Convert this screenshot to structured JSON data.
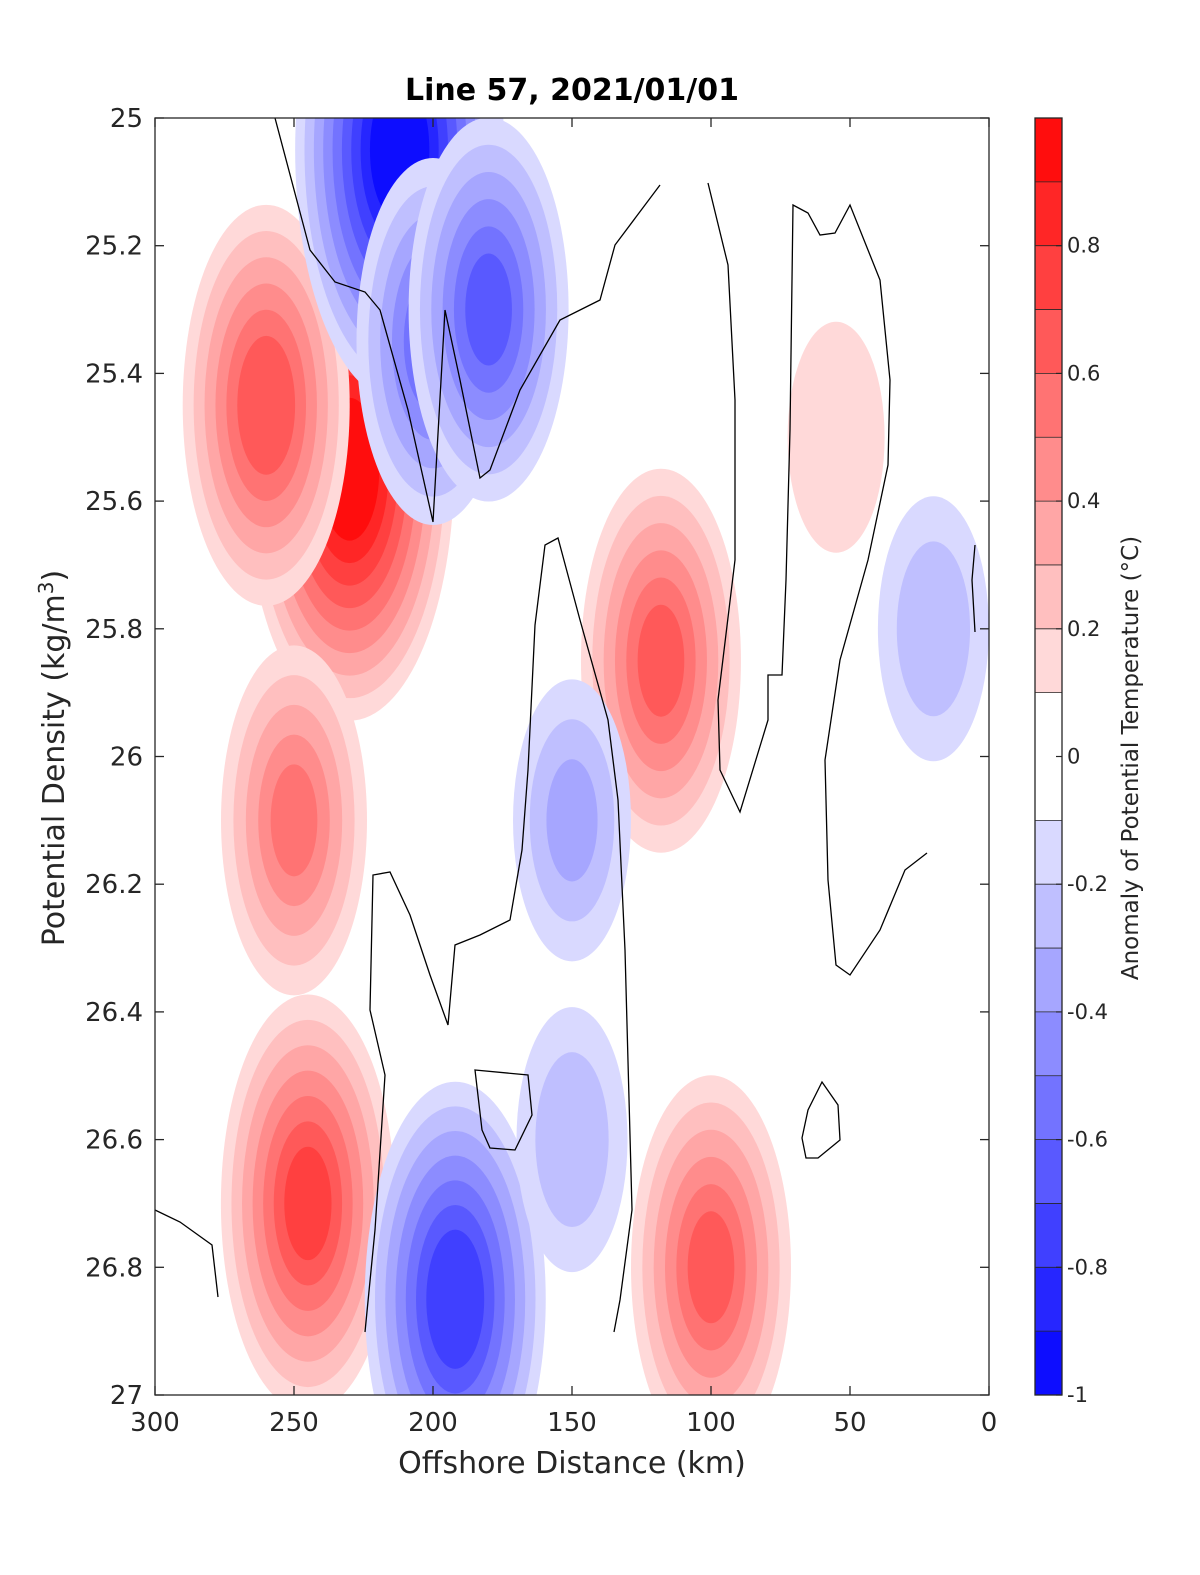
{
  "chart_data": {
    "type": "heatmap",
    "title": "Line 57, 2021/01/01",
    "xlabel": "Offshore Distance (km)",
    "ylabel": "Potential Density (kg/m",
    "ylabel_superscript": "3",
    "ylabel_suffix": ")",
    "colorbar_label": "Anomaly of Potential Temperature (°C)",
    "xlim": [
      300,
      0
    ],
    "x_reversed": true,
    "ylim": [
      25,
      27
    ],
    "y_reversed": true,
    "x_ticks": [
      300,
      250,
      200,
      150,
      100,
      50,
      0
    ],
    "x_tick_labels": [
      "300",
      "250",
      "200",
      "150",
      "100",
      "50",
      "0"
    ],
    "y_ticks": [
      25,
      25.2,
      25.4,
      25.6,
      25.8,
      26,
      26.2,
      26.4,
      26.6,
      26.8,
      27
    ],
    "y_tick_labels": [
      "25",
      "25.2",
      "25.4",
      "25.6",
      "25.8",
      "26",
      "26.2",
      "26.4",
      "26.6",
      "26.8",
      "27"
    ],
    "colorbar_range": [
      -1,
      1
    ],
    "colorbar_ticks": [
      -1,
      -0.8,
      -0.6,
      -0.4,
      -0.2,
      0,
      0.2,
      0.4,
      0.6,
      0.8
    ],
    "colorbar_tick_labels": [
      "-1",
      "-0.8",
      "-0.6",
      "-0.4",
      "-0.2",
      "0",
      "0.2",
      "0.4",
      "0.6",
      "0.8"
    ],
    "contour_levels": [
      -1,
      -0.9,
      -0.8,
      -0.7,
      -0.6,
      -0.5,
      -0.4,
      -0.3,
      -0.2,
      -0.1,
      0.1,
      0.2,
      0.3,
      0.4,
      0.5,
      0.6,
      0.7,
      0.8,
      0.9,
      1
    ],
    "zero_contour": true,
    "colormap": "blue-white-red",
    "colors": {
      "negative": "#0000ff",
      "neutral": "#ffffff",
      "positive": "#ff0000",
      "contour_line": "#000000"
    },
    "anomaly_features": [
      {
        "kind": "warm",
        "x": 230,
        "y": 25.55,
        "value": 0.95
      },
      {
        "kind": "warm",
        "x": 260,
        "y": 25.45,
        "value": 0.65
      },
      {
        "kind": "warm",
        "x": 250,
        "y": 26.1,
        "value": 0.5
      },
      {
        "kind": "warm",
        "x": 245,
        "y": 26.7,
        "value": 0.7
      },
      {
        "kind": "warm",
        "x": 118,
        "y": 25.85,
        "value": 0.6
      },
      {
        "kind": "warm",
        "x": 100,
        "y": 26.8,
        "value": 0.6
      },
      {
        "kind": "warm",
        "x": 55,
        "y": 25.5,
        "value": 0.15
      },
      {
        "kind": "cold",
        "x": 212,
        "y": 25.05,
        "value": -0.95
      },
      {
        "kind": "cold",
        "x": 200,
        "y": 25.35,
        "value": -0.55
      },
      {
        "kind": "cold",
        "x": 180,
        "y": 25.3,
        "value": -0.6
      },
      {
        "kind": "cold",
        "x": 192,
        "y": 26.85,
        "value": -0.75
      },
      {
        "kind": "cold",
        "x": 150,
        "y": 26.1,
        "value": -0.3
      },
      {
        "kind": "cold",
        "x": 20,
        "y": 25.8,
        "value": -0.25
      },
      {
        "kind": "cold",
        "x": 150,
        "y": 26.6,
        "value": -0.25
      }
    ]
  }
}
